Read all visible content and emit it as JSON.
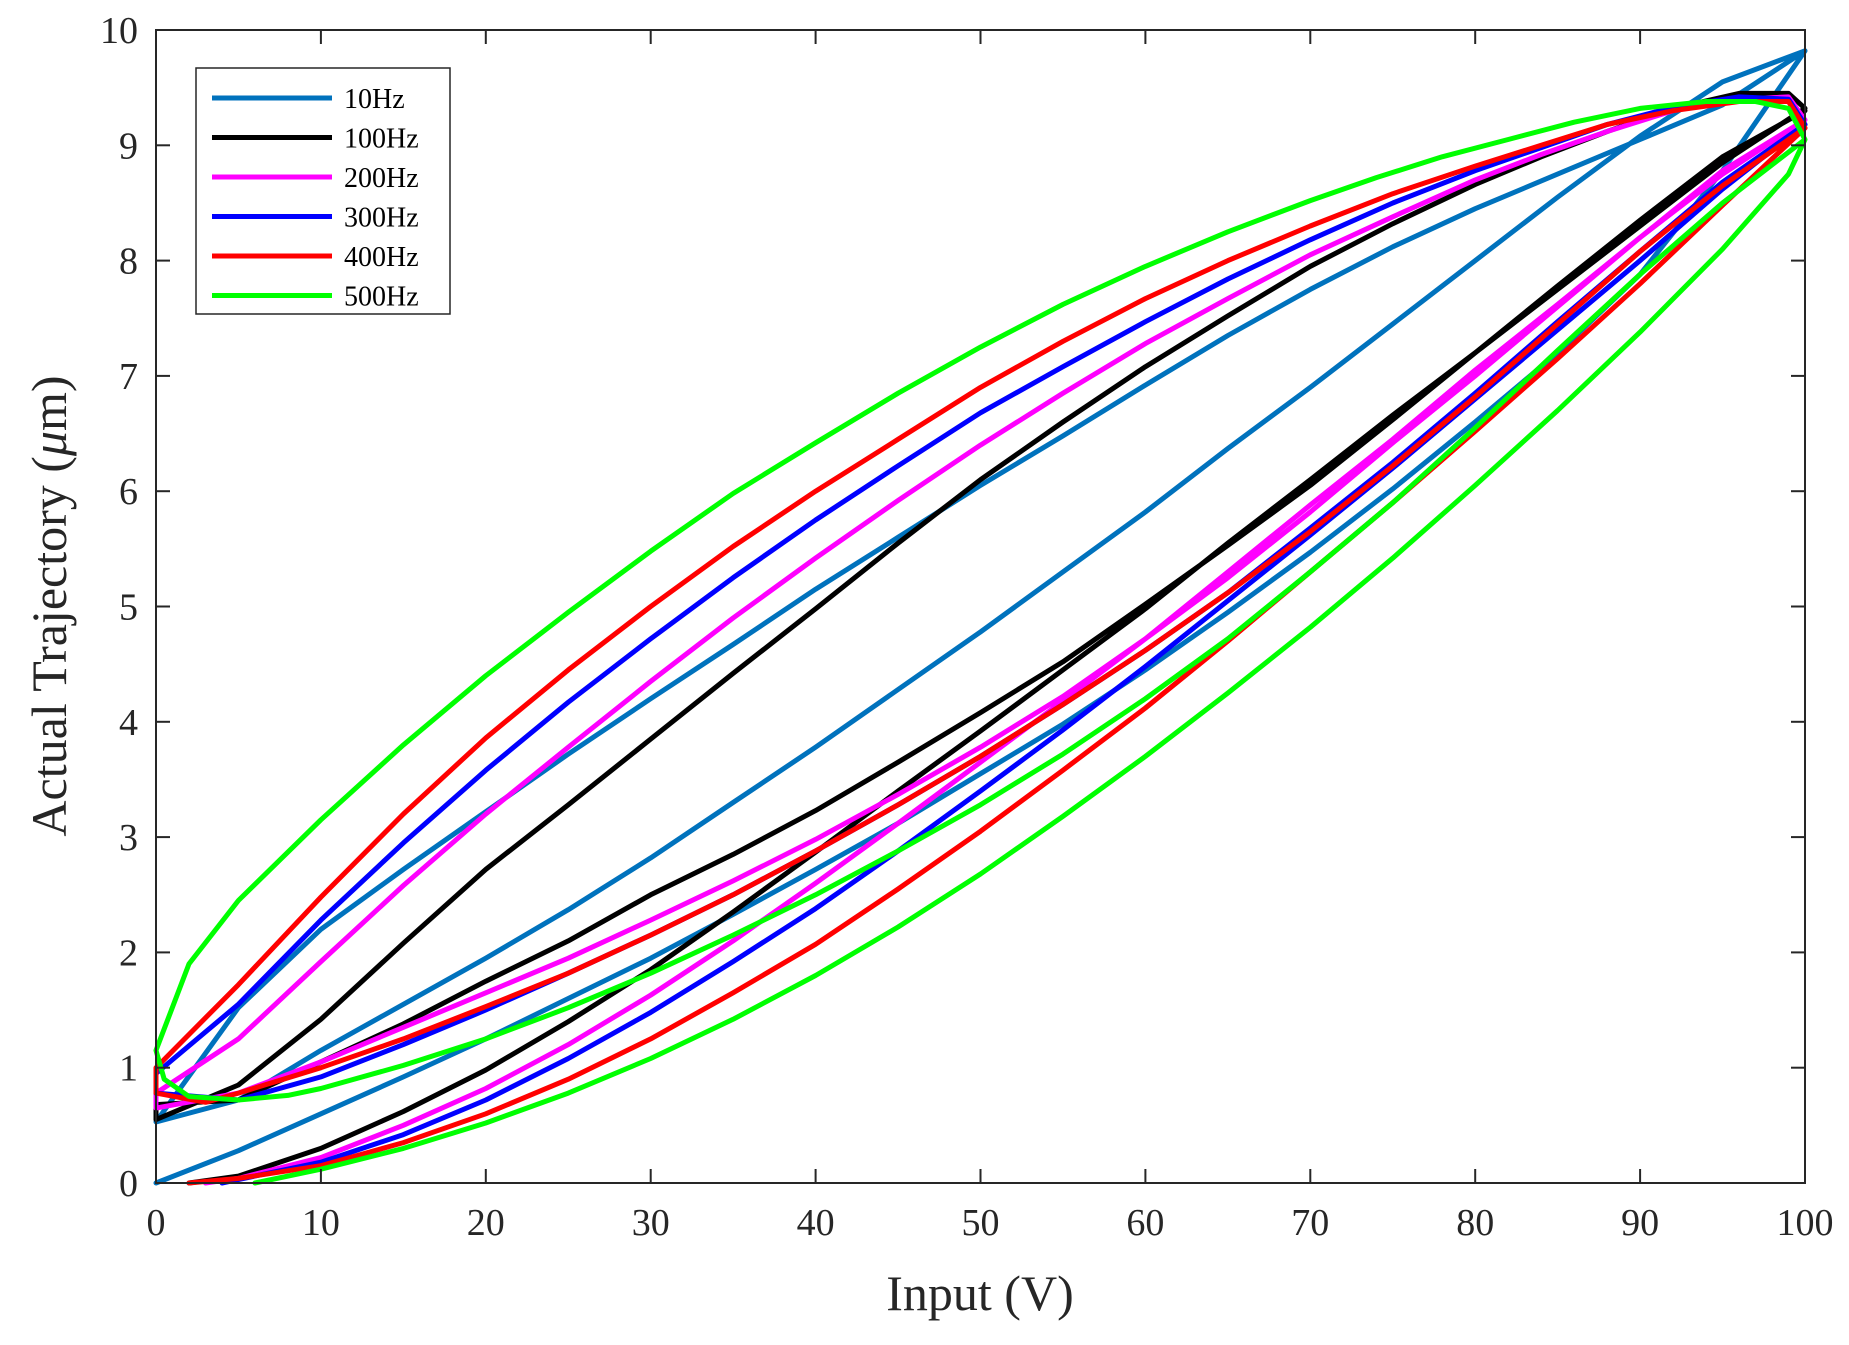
{
  "chart_data": {
    "type": "line",
    "title": "",
    "xlabel": "Input (V)",
    "ylabel_main": "Actual Trajectory (",
    "ylabel_mu": "μ",
    "ylabel_unit": "m)",
    "xlim": [
      0,
      100
    ],
    "ylim": [
      0,
      10
    ],
    "xticks": [
      "0",
      "10",
      "20",
      "30",
      "40",
      "50",
      "60",
      "70",
      "80",
      "90",
      "100"
    ],
    "yticks": [
      "0",
      "1",
      "2",
      "3",
      "4",
      "5",
      "6",
      "7",
      "8",
      "9",
      "10"
    ],
    "grid": false,
    "legend_position": "top-left",
    "series": [
      {
        "name": "10Hz",
        "color": "#0072BD",
        "x": [
          0,
          5,
          10,
          15,
          20,
          25,
          30,
          35,
          40,
          45,
          50,
          55,
          60,
          65,
          70,
          75,
          80,
          85,
          90,
          95,
          100,
          95,
          90,
          85,
          80,
          75,
          70,
          65,
          60,
          55,
          50,
          45,
          40,
          35,
          30,
          25,
          20,
          15,
          10,
          5,
          0,
          5,
          10,
          15,
          20,
          25,
          30,
          35,
          40,
          45,
          50,
          55,
          60,
          65,
          70,
          75,
          80,
          85,
          90,
          95,
          100
        ],
        "y": [
          0.0,
          0.28,
          0.6,
          0.92,
          1.25,
          1.6,
          1.95,
          2.33,
          2.72,
          3.12,
          3.55,
          3.98,
          4.45,
          4.95,
          5.47,
          6.02,
          6.6,
          7.2,
          7.88,
          8.78,
          9.82,
          9.35,
          9.05,
          8.75,
          8.45,
          8.12,
          7.75,
          7.35,
          6.92,
          6.48,
          6.05,
          5.6,
          5.15,
          4.67,
          4.2,
          3.72,
          3.22,
          2.72,
          2.2,
          1.52,
          0.53,
          0.72,
          1.15,
          1.55,
          1.95,
          2.37,
          2.82,
          3.3,
          3.78,
          4.28,
          4.78,
          5.3,
          5.82,
          6.37,
          6.9,
          7.45,
          8.0,
          8.55,
          9.08,
          9.55,
          9.82
        ]
      },
      {
        "name": "100Hz",
        "color": "#000000",
        "x": [
          2,
          5,
          10,
          15,
          20,
          25,
          30,
          35,
          40,
          45,
          50,
          55,
          60,
          65,
          70,
          75,
          80,
          85,
          90,
          95,
          100,
          99,
          96,
          92,
          88,
          84,
          80,
          75,
          70,
          65,
          60,
          55,
          50,
          45,
          40,
          35,
          30,
          25,
          20,
          15,
          10,
          5,
          0,
          0,
          5,
          10,
          15,
          20,
          25,
          30,
          35,
          40,
          45,
          50,
          55,
          60,
          65,
          70,
          75,
          80,
          85,
          90,
          95,
          100
        ],
        "y": [
          0.0,
          0.06,
          0.3,
          0.62,
          0.98,
          1.4,
          1.85,
          2.35,
          2.87,
          3.4,
          3.92,
          4.45,
          4.98,
          5.55,
          6.1,
          6.66,
          7.2,
          7.75,
          8.3,
          8.85,
          9.32,
          9.45,
          9.45,
          9.32,
          9.12,
          8.9,
          8.66,
          8.32,
          7.95,
          7.52,
          7.08,
          6.6,
          6.1,
          5.55,
          4.98,
          4.42,
          3.85,
          3.28,
          2.72,
          2.08,
          1.42,
          0.85,
          0.55,
          0.68,
          0.72,
          1.05,
          1.38,
          1.75,
          2.1,
          2.5,
          2.85,
          3.23,
          3.65,
          4.08,
          4.52,
          5.02,
          5.53,
          6.05,
          6.62,
          7.2,
          7.78,
          8.35,
          8.9,
          9.3
        ]
      },
      {
        "name": "200Hz",
        "color": "#FF00FF",
        "x": [
          3,
          5,
          10,
          15,
          20,
          25,
          30,
          35,
          40,
          45,
          50,
          55,
          60,
          65,
          70,
          75,
          80,
          85,
          90,
          95,
          100,
          99,
          96,
          92,
          88,
          84,
          80,
          75,
          70,
          65,
          60,
          55,
          50,
          45,
          40,
          35,
          30,
          25,
          20,
          15,
          10,
          5,
          0,
          0,
          5,
          10,
          15,
          20,
          25,
          30,
          35,
          40,
          45,
          50,
          55,
          60,
          65,
          70,
          75,
          80,
          85,
          90,
          95,
          100
        ],
        "y": [
          0.0,
          0.04,
          0.22,
          0.5,
          0.82,
          1.2,
          1.63,
          2.1,
          2.6,
          3.12,
          3.65,
          4.18,
          4.72,
          5.3,
          5.88,
          6.45,
          7.05,
          7.62,
          8.2,
          8.75,
          9.22,
          9.42,
          9.4,
          9.3,
          9.12,
          8.92,
          8.7,
          8.38,
          8.05,
          7.67,
          7.28,
          6.85,
          6.4,
          5.92,
          5.42,
          4.9,
          4.35,
          3.78,
          3.2,
          2.58,
          1.92,
          1.25,
          0.78,
          0.65,
          0.78,
          1.05,
          1.35,
          1.65,
          1.95,
          2.28,
          2.62,
          2.98,
          3.37,
          3.78,
          4.22,
          4.72,
          5.25,
          5.82,
          6.42,
          7.0,
          7.6,
          8.2,
          8.78,
          9.22
        ]
      },
      {
        "name": "300Hz",
        "color": "#0000FF",
        "x": [
          4,
          5,
          10,
          15,
          20,
          25,
          30,
          35,
          40,
          45,
          50,
          55,
          60,
          65,
          70,
          75,
          80,
          85,
          90,
          95,
          100,
          99,
          96,
          92,
          88,
          84,
          80,
          75,
          70,
          65,
          60,
          55,
          50,
          45,
          40,
          35,
          30,
          25,
          20,
          15,
          10,
          5,
          0,
          0,
          5,
          10,
          15,
          20,
          25,
          30,
          35,
          40,
          45,
          50,
          55,
          60,
          65,
          70,
          75,
          80,
          85,
          90,
          95,
          100
        ],
        "y": [
          0.0,
          0.03,
          0.18,
          0.42,
          0.72,
          1.08,
          1.48,
          1.92,
          2.38,
          2.88,
          3.4,
          3.93,
          4.48,
          5.05,
          5.62,
          6.2,
          6.8,
          7.4,
          8.0,
          8.62,
          9.18,
          9.4,
          9.42,
          9.33,
          9.18,
          8.98,
          8.78,
          8.5,
          8.18,
          7.84,
          7.47,
          7.08,
          6.68,
          6.22,
          5.75,
          5.25,
          4.72,
          4.17,
          3.58,
          2.95,
          2.28,
          1.55,
          0.95,
          0.78,
          0.72,
          0.92,
          1.2,
          1.5,
          1.82,
          2.15,
          2.5,
          2.88,
          3.28,
          3.7,
          4.15,
          4.62,
          5.12,
          5.68,
          6.25,
          6.85,
          7.47,
          8.08,
          8.68,
          9.18
        ]
      },
      {
        "name": "400Hz",
        "color": "#FF0000",
        "x": [
          2,
          5,
          10,
          15,
          20,
          25,
          30,
          35,
          40,
          45,
          50,
          55,
          60,
          65,
          70,
          75,
          80,
          85,
          90,
          95,
          100,
          99,
          96,
          92,
          88,
          84,
          80,
          75,
          70,
          65,
          60,
          55,
          50,
          45,
          40,
          35,
          30,
          25,
          20,
          15,
          10,
          5,
          0,
          0,
          3,
          5,
          10,
          15,
          20,
          25,
          30,
          35,
          40,
          45,
          50,
          55,
          60,
          65,
          70,
          75,
          80,
          85,
          90,
          95,
          100
        ],
        "y": [
          0.0,
          0.04,
          0.15,
          0.35,
          0.6,
          0.9,
          1.25,
          1.65,
          2.07,
          2.55,
          3.05,
          3.58,
          4.12,
          4.7,
          5.3,
          5.9,
          6.52,
          7.15,
          7.8,
          8.48,
          9.15,
          9.38,
          9.38,
          9.3,
          9.18,
          9.0,
          8.82,
          8.58,
          8.3,
          8.0,
          7.67,
          7.3,
          6.9,
          6.45,
          6.0,
          5.52,
          5.0,
          4.45,
          3.86,
          3.2,
          2.48,
          1.72,
          1.0,
          0.78,
          0.7,
          0.78,
          1.0,
          1.25,
          1.53,
          1.82,
          2.15,
          2.5,
          2.88,
          3.28,
          3.7,
          4.15,
          4.62,
          5.12,
          5.65,
          6.22,
          6.82,
          7.45,
          8.08,
          8.65,
          9.15
        ]
      },
      {
        "name": "500Hz",
        "color": "#00FF00",
        "x": [
          6,
          10,
          15,
          20,
          25,
          30,
          35,
          40,
          45,
          50,
          55,
          60,
          65,
          70,
          75,
          80,
          85,
          90,
          95,
          99,
          100,
          99,
          97,
          94,
          90,
          86,
          82,
          78,
          74,
          70,
          65,
          60,
          55,
          50,
          45,
          40,
          35,
          30,
          25,
          20,
          15,
          10,
          5,
          2,
          0,
          0.5,
          2,
          5,
          8,
          10,
          15,
          20,
          25,
          30,
          35,
          40,
          45,
          50,
          55,
          60,
          65,
          70,
          75,
          80,
          85,
          90,
          95,
          100
        ],
        "y": [
          0.0,
          0.12,
          0.3,
          0.52,
          0.78,
          1.08,
          1.42,
          1.8,
          2.22,
          2.68,
          3.18,
          3.7,
          4.25,
          4.82,
          5.42,
          6.05,
          6.7,
          7.38,
          8.1,
          8.75,
          9.05,
          9.32,
          9.38,
          9.38,
          9.32,
          9.2,
          9.05,
          8.9,
          8.72,
          8.52,
          8.25,
          7.95,
          7.62,
          7.25,
          6.85,
          6.42,
          5.98,
          5.48,
          4.95,
          4.4,
          3.8,
          3.15,
          2.45,
          1.9,
          1.15,
          0.9,
          0.75,
          0.72,
          0.76,
          0.82,
          1.02,
          1.25,
          1.52,
          1.82,
          2.15,
          2.5,
          2.88,
          3.28,
          3.72,
          4.2,
          4.72,
          5.3,
          5.9,
          6.55,
          7.22,
          7.88,
          8.5,
          9.05
        ]
      }
    ]
  }
}
